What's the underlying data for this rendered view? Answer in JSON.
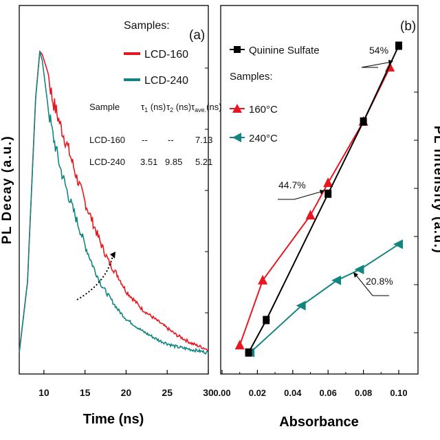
{
  "colors": {
    "red": "#e8171f",
    "teal": "#138580",
    "black": "#000000"
  },
  "chart_data": [
    {
      "type": "line",
      "panel_label": "(a)",
      "xlabel": "Time (ns)",
      "ylabel": "PL Decay (a.u.)",
      "xlim": [
        7,
        30
      ],
      "ylim": [
        0,
        1.06
      ],
      "xticks": [
        "10",
        "15",
        "20",
        "25",
        "30"
      ],
      "xtick_values": [
        10,
        15,
        20,
        25,
        30
      ],
      "legend_title": "Samples:",
      "series": [
        {
          "name": "LCD-160",
          "color": "#e8171f",
          "x": [
            7.0,
            8.0,
            8.5,
            9.0,
            9.5,
            9.8,
            10.5,
            11,
            12,
            13,
            14,
            15,
            16,
            17,
            18,
            19,
            20,
            22,
            24,
            26,
            28,
            30
          ],
          "y": [
            0.02,
            0.25,
            0.55,
            0.85,
            1.0,
            0.99,
            0.93,
            0.85,
            0.76,
            0.68,
            0.59,
            0.51,
            0.44,
            0.37,
            0.31,
            0.27,
            0.22,
            0.16,
            0.12,
            0.08,
            0.05,
            0.03
          ]
        },
        {
          "name": "LCD-240",
          "color": "#138580",
          "x": [
            7.0,
            8.0,
            8.5,
            9.0,
            9.5,
            9.8,
            10.5,
            11,
            12,
            13,
            14,
            15,
            16,
            17,
            18,
            19,
            20,
            22,
            24,
            26,
            28,
            30
          ],
          "y": [
            0.02,
            0.25,
            0.55,
            0.85,
            1.0,
            0.97,
            0.82,
            0.74,
            0.62,
            0.53,
            0.45,
            0.37,
            0.3,
            0.24,
            0.2,
            0.16,
            0.13,
            0.09,
            0.06,
            0.04,
            0.03,
            0.02
          ]
        }
      ],
      "table": {
        "headers": [
          "Sample",
          "τ1 (ns)",
          "τ2 (ns)",
          "τave. (ns)"
        ],
        "rows": [
          [
            "LCD-160",
            "--",
            "--",
            "7.13"
          ],
          [
            "LCD-240",
            "3.51",
            "9.85",
            "5.21"
          ]
        ]
      }
    },
    {
      "type": "scatter",
      "panel_label": "(b)",
      "xlabel": "Absorbance",
      "ylabel": "PL Intensity (a.u.)",
      "xlim": [
        0.0,
        0.105
      ],
      "ylim": [
        0,
        1.0
      ],
      "xticks": [
        "0.00",
        "0.02",
        "0.04",
        "0.06",
        "0.08",
        "0.10"
      ],
      "xtick_values": [
        0.0,
        0.02,
        0.04,
        0.06,
        0.08,
        0.1
      ],
      "legend_title": "Samples:",
      "series": [
        {
          "name": "Quinine Sulfate",
          "marker": "square",
          "color": "#000000",
          "x": [
            0.015,
            0.025,
            0.06,
            0.08,
            0.1
          ],
          "y": [
            0.09,
            0.18,
            0.53,
            0.73,
            0.94
          ]
        },
        {
          "name": "160°C",
          "marker": "triangle-up",
          "color": "#e8171f",
          "x": [
            0.01,
            0.023,
            0.05,
            0.06,
            0.08,
            0.095
          ],
          "y": [
            0.11,
            0.29,
            0.47,
            0.56,
            0.73,
            0.88
          ]
        },
        {
          "name": "240°C",
          "marker": "triangle-left",
          "color": "#138580",
          "x": [
            0.016,
            0.045,
            0.065,
            0.078,
            0.1
          ],
          "y": [
            0.09,
            0.22,
            0.29,
            0.32,
            0.39
          ]
        }
      ],
      "annotations": [
        "54%",
        "44.7%",
        "20.8%"
      ]
    }
  ]
}
